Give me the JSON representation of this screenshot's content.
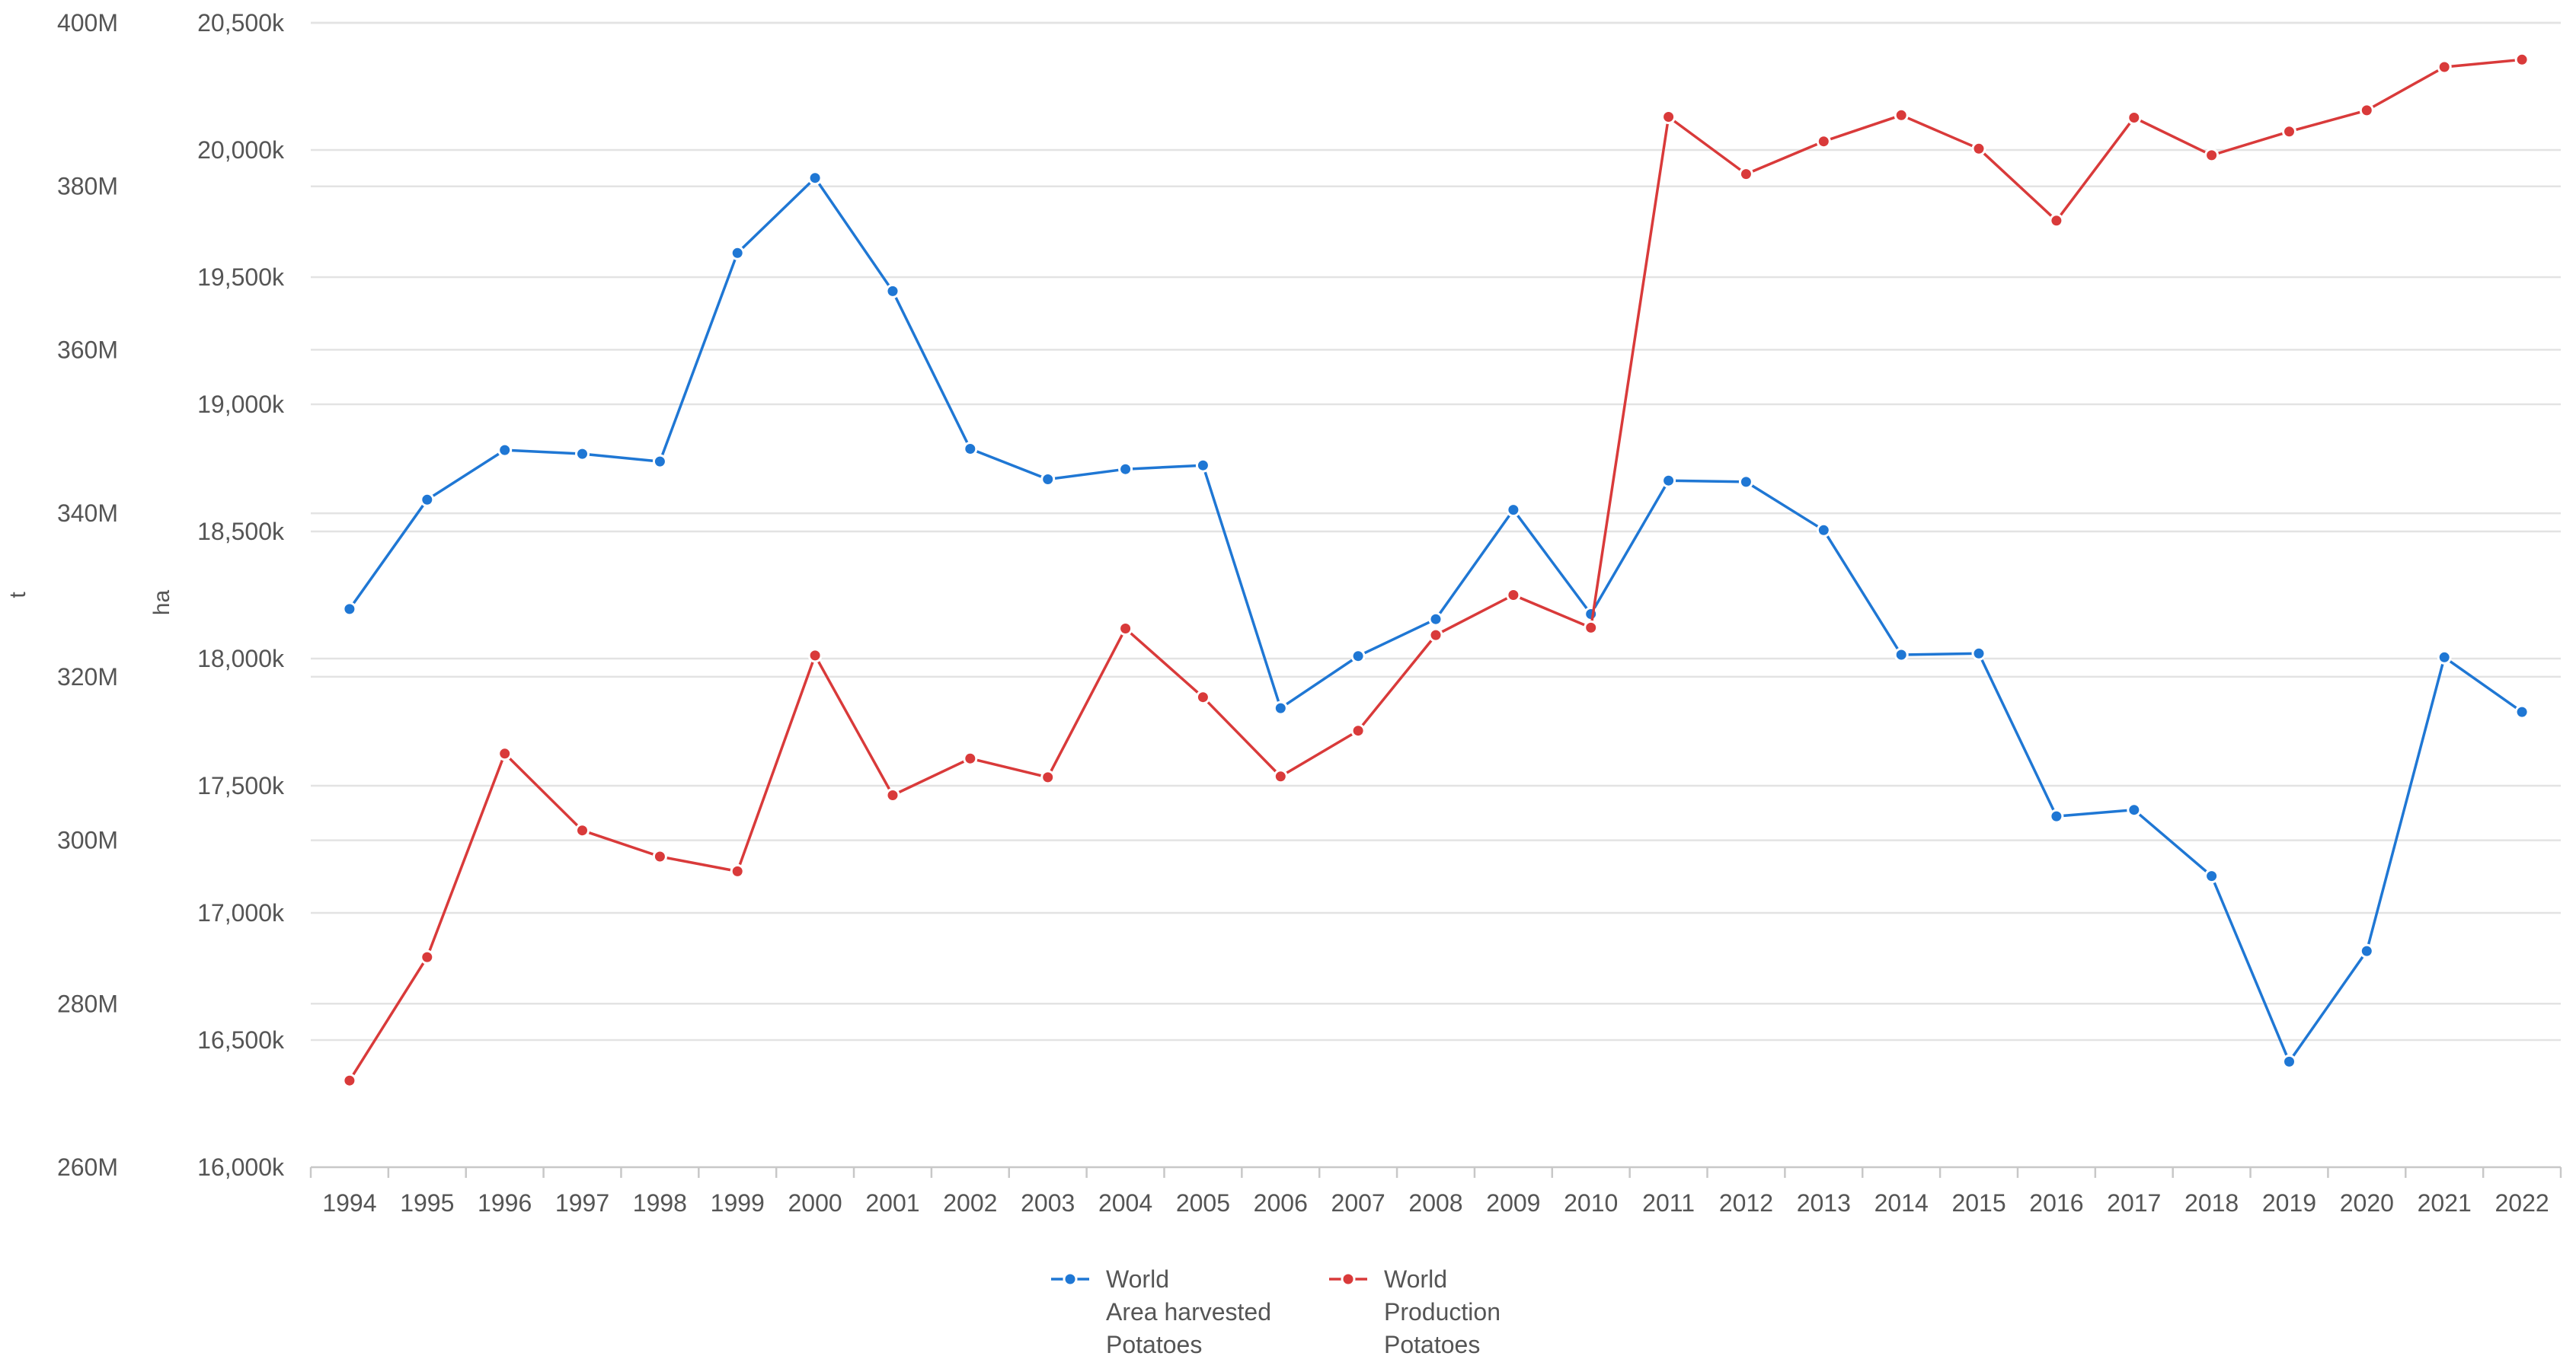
{
  "chart_data": {
    "type": "line",
    "title": "",
    "xlabel": "",
    "x": [
      "1994",
      "1995",
      "1996",
      "1997",
      "1998",
      "1999",
      "2000",
      "2001",
      "2002",
      "2003",
      "2004",
      "2005",
      "2006",
      "2007",
      "2008",
      "2009",
      "2010",
      "2011",
      "2012",
      "2013",
      "2014",
      "2015",
      "2016",
      "2017",
      "2018",
      "2019",
      "2020",
      "2021",
      "2022"
    ],
    "y_left": {
      "label": "t",
      "lim": [
        260000000,
        400000000
      ],
      "ticks": [
        260000000,
        280000000,
        300000000,
        320000000,
        340000000,
        360000000,
        380000000,
        400000000
      ],
      "tick_labels": [
        "260M",
        "280M",
        "300M",
        "320M",
        "340M",
        "360M",
        "380M",
        "400M"
      ]
    },
    "y_right": {
      "label": "ha",
      "lim": [
        16000000,
        20500000
      ],
      "ticks": [
        16000000,
        16500000,
        17000000,
        17500000,
        18000000,
        18500000,
        19000000,
        19500000,
        20000000,
        20500000
      ],
      "tick_labels": [
        "16,000k",
        "16,500k",
        "17,000k",
        "17,500k",
        "18,000k",
        "18,500k",
        "19,000k",
        "19,500k",
        "20,000k",
        "20,500k"
      ]
    },
    "grid": true,
    "legend_position": "bottom",
    "series": [
      {
        "name": "World Area harvested Potatoes",
        "legend_lines": [
          "World",
          "Area harvested",
          "Potatoes"
        ],
        "color": "#1f77d4",
        "axis": "ha",
        "unit": "ha",
        "values": [
          18195000,
          18625000,
          18820000,
          18805000,
          18775000,
          19595000,
          19890000,
          19445000,
          18825000,
          18705000,
          18745000,
          18760000,
          17805000,
          18010000,
          18155000,
          18585000,
          18175000,
          18700000,
          18695000,
          18505000,
          18015000,
          18020000,
          17380000,
          17405000,
          17145000,
          16415000,
          16850000,
          18005000,
          17790000
        ]
      },
      {
        "name": "World Production Potatoes",
        "legend_lines": [
          "World",
          "Production",
          "Potatoes"
        ],
        "color": "#d93a3a",
        "axis": "t",
        "unit": "t",
        "values": [
          270600000,
          285700000,
          310600000,
          301200000,
          298000000,
          296200000,
          322600000,
          305500000,
          310000000,
          307700000,
          325900000,
          317500000,
          307800000,
          313400000,
          325100000,
          330000000,
          326000000,
          388500000,
          381500000,
          385500000,
          388700000,
          384600000,
          375800000,
          388400000,
          383800000,
          386700000,
          389300000,
          394600000,
          395500000
        ]
      }
    ]
  }
}
